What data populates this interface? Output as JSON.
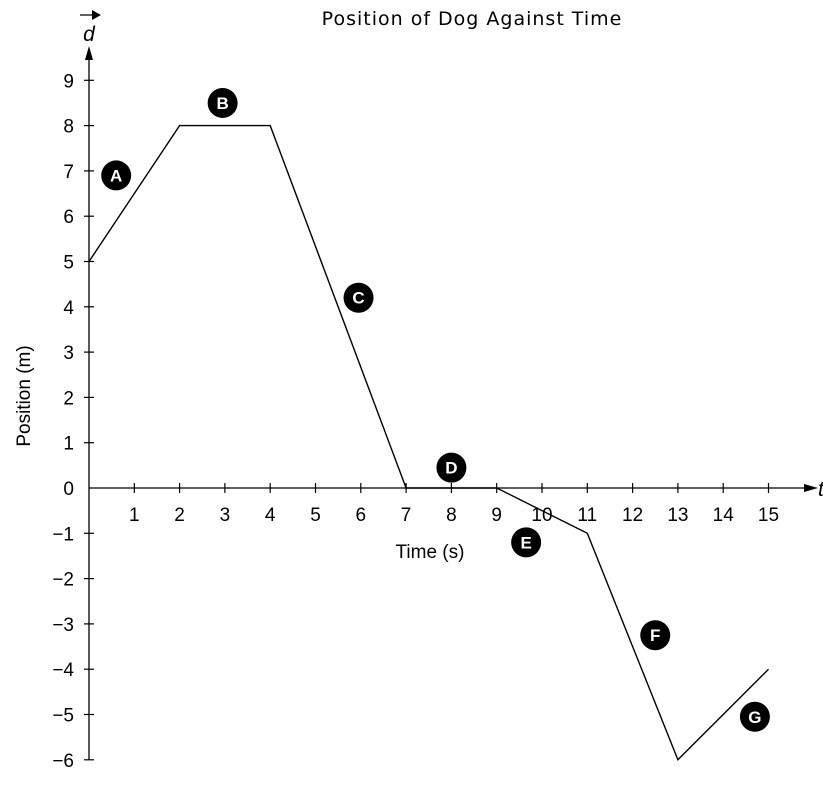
{
  "chart_data": {
    "type": "line",
    "title": "Position of Dog Against Time",
    "xlabel": "Time (s)",
    "ylabel": "Position (m)",
    "x_axis_variable": "t",
    "y_axis_variable": "d",
    "xlim": [
      0,
      15
    ],
    "ylim": [
      -6,
      9
    ],
    "x_ticks": [
      1,
      2,
      3,
      4,
      5,
      6,
      7,
      8,
      9,
      10,
      11,
      12,
      13,
      14,
      15
    ],
    "y_ticks": [
      9,
      8,
      7,
      6,
      5,
      4,
      3,
      2,
      1,
      0,
      -1,
      -2,
      -3,
      -4,
      -5,
      -6
    ],
    "x_tick_labels": [
      "1",
      "2",
      "3",
      "4",
      "5",
      "6",
      "7",
      "8",
      "9",
      "10",
      "11",
      "12",
      "13",
      "14",
      "15"
    ],
    "y_tick_labels": [
      "9",
      "8",
      "7",
      "6",
      "5",
      "4",
      "3",
      "2",
      "1",
      "0",
      "−1",
      "−2",
      "−3",
      "−4",
      "−5",
      "−6"
    ],
    "grid": false,
    "series": [
      {
        "x": [
          0,
          2,
          4,
          7,
          9,
          11,
          13,
          15
        ],
        "y": [
          5,
          8,
          8,
          0,
          0,
          -1,
          -6,
          -4
        ]
      }
    ],
    "segment_labels": [
      {
        "label": "A",
        "x": 0.6,
        "y": 6.9
      },
      {
        "label": "B",
        "x": 2.95,
        "y": 8.5
      },
      {
        "label": "C",
        "x": 5.95,
        "y": 4.2
      },
      {
        "label": "D",
        "x": 8.0,
        "y": 0.45
      },
      {
        "label": "E",
        "x": 9.65,
        "y": -1.2
      },
      {
        "label": "F",
        "x": 12.5,
        "y": -3.25
      },
      {
        "label": "G",
        "x": 14.7,
        "y": -5.05
      }
    ]
  }
}
